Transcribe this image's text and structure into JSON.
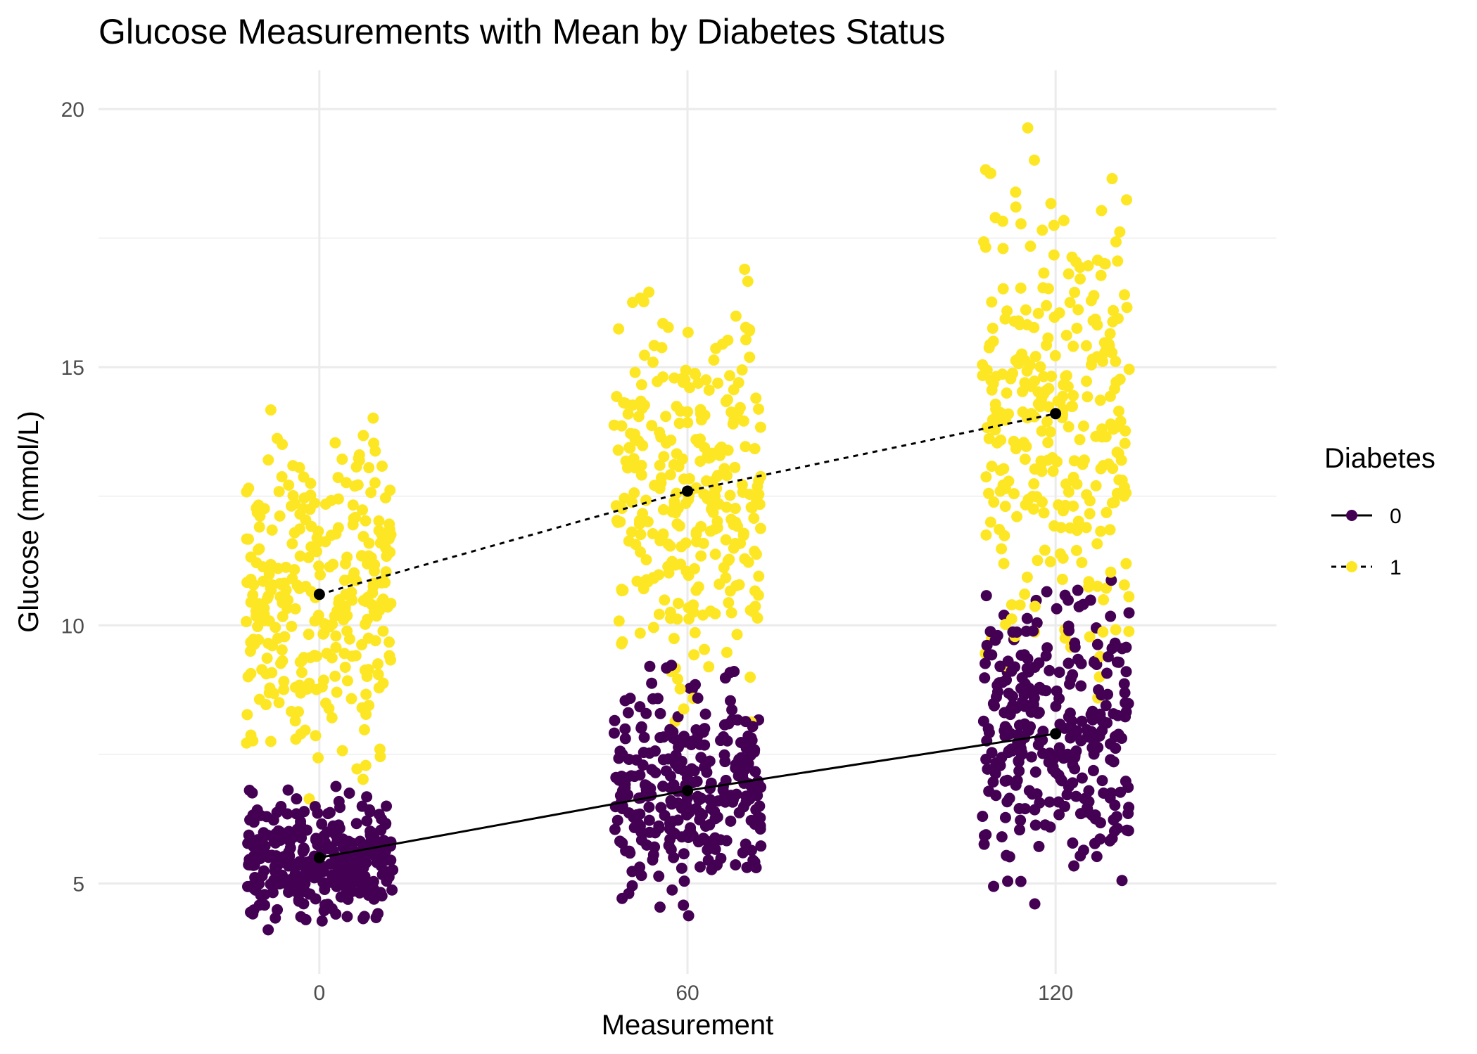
{
  "chart_data": {
    "type": "scatter",
    "title": "Glucose Measurements with Mean by Diabetes Status",
    "xlabel": "Measurement",
    "ylabel": "Glucose (mmol/L)",
    "x_ticks": [
      0,
      60,
      120
    ],
    "y_ticks": [
      5,
      10,
      15,
      20
    ],
    "xlim": [
      -36,
      156
    ],
    "ylim": [
      3.25,
      20.75
    ],
    "grid": true,
    "legend": {
      "title": "Diabetes",
      "position": "right",
      "entries": [
        {
          "label": "0",
          "color": "#440154",
          "linetype": "solid"
        },
        {
          "label": "1",
          "color": "#FDE725",
          "linetype": "dashed"
        }
      ]
    },
    "jitter_width": 12,
    "series": [
      {
        "name": "0",
        "color": "#440154",
        "mean_linetype": "solid",
        "groups": [
          {
            "x": 0,
            "count": 300,
            "min": 3.9,
            "max": 7.0,
            "mean": 5.5
          },
          {
            "x": 60,
            "count": 300,
            "min": 3.9,
            "max": 9.5,
            "mean": 6.8
          },
          {
            "x": 120,
            "count": 300,
            "min": 3.9,
            "max": 11.5,
            "mean": 7.9
          }
        ]
      },
      {
        "name": "1",
        "color": "#FDE725",
        "mean_linetype": "dashed",
        "groups": [
          {
            "x": 0,
            "count": 300,
            "min": 6.2,
            "max": 15.0,
            "mean": 10.6
          },
          {
            "x": 60,
            "count": 300,
            "min": 7.0,
            "max": 17.5,
            "mean": 12.6
          },
          {
            "x": 120,
            "count": 300,
            "min": 8.0,
            "max": 20.0,
            "mean": 14.1
          }
        ]
      }
    ]
  }
}
